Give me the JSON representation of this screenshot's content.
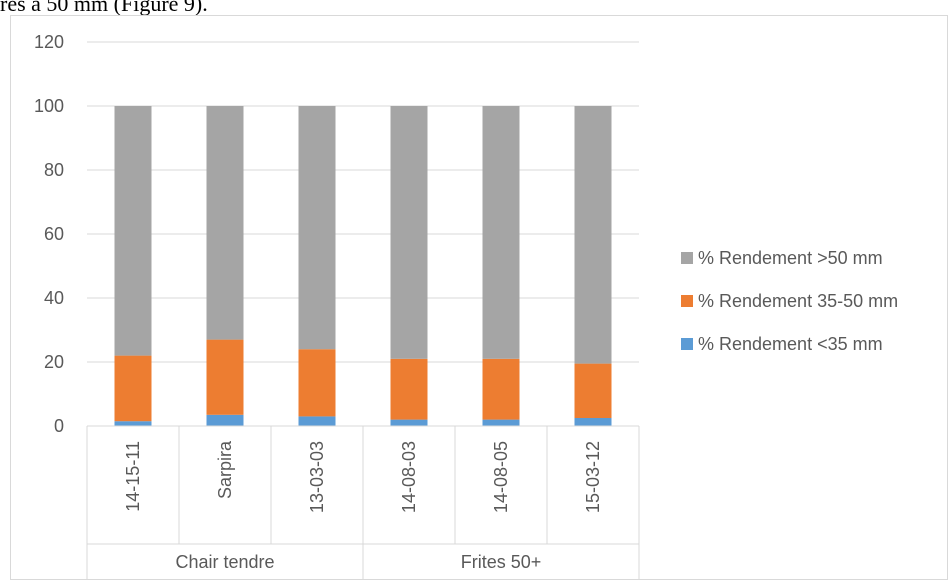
{
  "caption_fragment": "res à 50 mm (Figure 9).",
  "chart_data": {
    "type": "bar",
    "stacked": true,
    "categories": [
      "14-15-11",
      "Sarpira",
      "13-03-03",
      "14-08-03",
      "14-08-05",
      "15-03-12"
    ],
    "groups": [
      {
        "label": "Chair tendre",
        "categories": [
          "14-15-11",
          "Sarpira",
          "13-03-03"
        ]
      },
      {
        "label": "Frites 50+",
        "categories": [
          "14-08-03",
          "14-08-05",
          "15-03-12"
        ]
      }
    ],
    "series": [
      {
        "name": "% Rendement <35 mm",
        "color": "#5b9bd5",
        "values": [
          1.5,
          3.5,
          3,
          2,
          2,
          2.5
        ]
      },
      {
        "name": "% Rendement 35-50 mm",
        "color": "#ed7d31",
        "values": [
          20.5,
          23.5,
          21,
          19,
          19,
          17
        ]
      },
      {
        "name": "% Rendement >50 mm",
        "color": "#a5a5a5",
        "values": [
          78,
          73,
          76,
          79,
          79,
          80.5
        ]
      }
    ],
    "ylim": [
      0,
      120
    ],
    "yticks": [
      0,
      20,
      40,
      60,
      80,
      100,
      120
    ],
    "grid": true,
    "legend_position": "right",
    "title": "",
    "xlabel": "",
    "ylabel": ""
  }
}
